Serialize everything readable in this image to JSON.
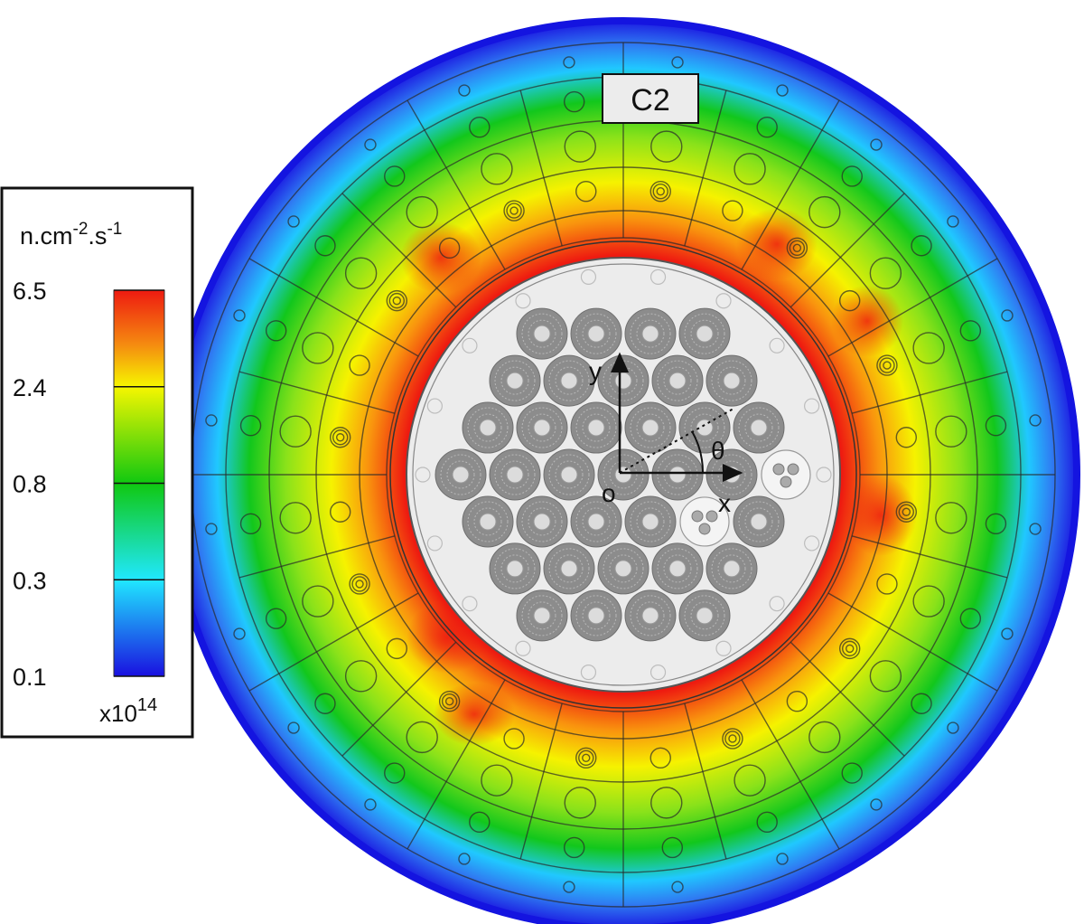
{
  "tag_label": "C2",
  "legend": {
    "unit_base": "n.cm",
    "unit_exp1": "-2",
    "unit_mid": ".s",
    "unit_exp2": "-1",
    "ticks": [
      "6.5",
      "2.4",
      "0.8",
      "0.3",
      "0.1"
    ],
    "multiplier_base": "x10",
    "multiplier_exp": "14",
    "colors": [
      "#1a10e0",
      "#20c8ff",
      "#10c810",
      "#f6f600",
      "#ee1a10"
    ]
  },
  "axes": {
    "x_label": "x",
    "y_label": "y",
    "origin_label": "o",
    "angle_label": "θ"
  },
  "colors": {
    "core_fill": "#ececec",
    "assembly_fill": "#8c8c8c",
    "outer_ring": "#1414e0"
  }
}
